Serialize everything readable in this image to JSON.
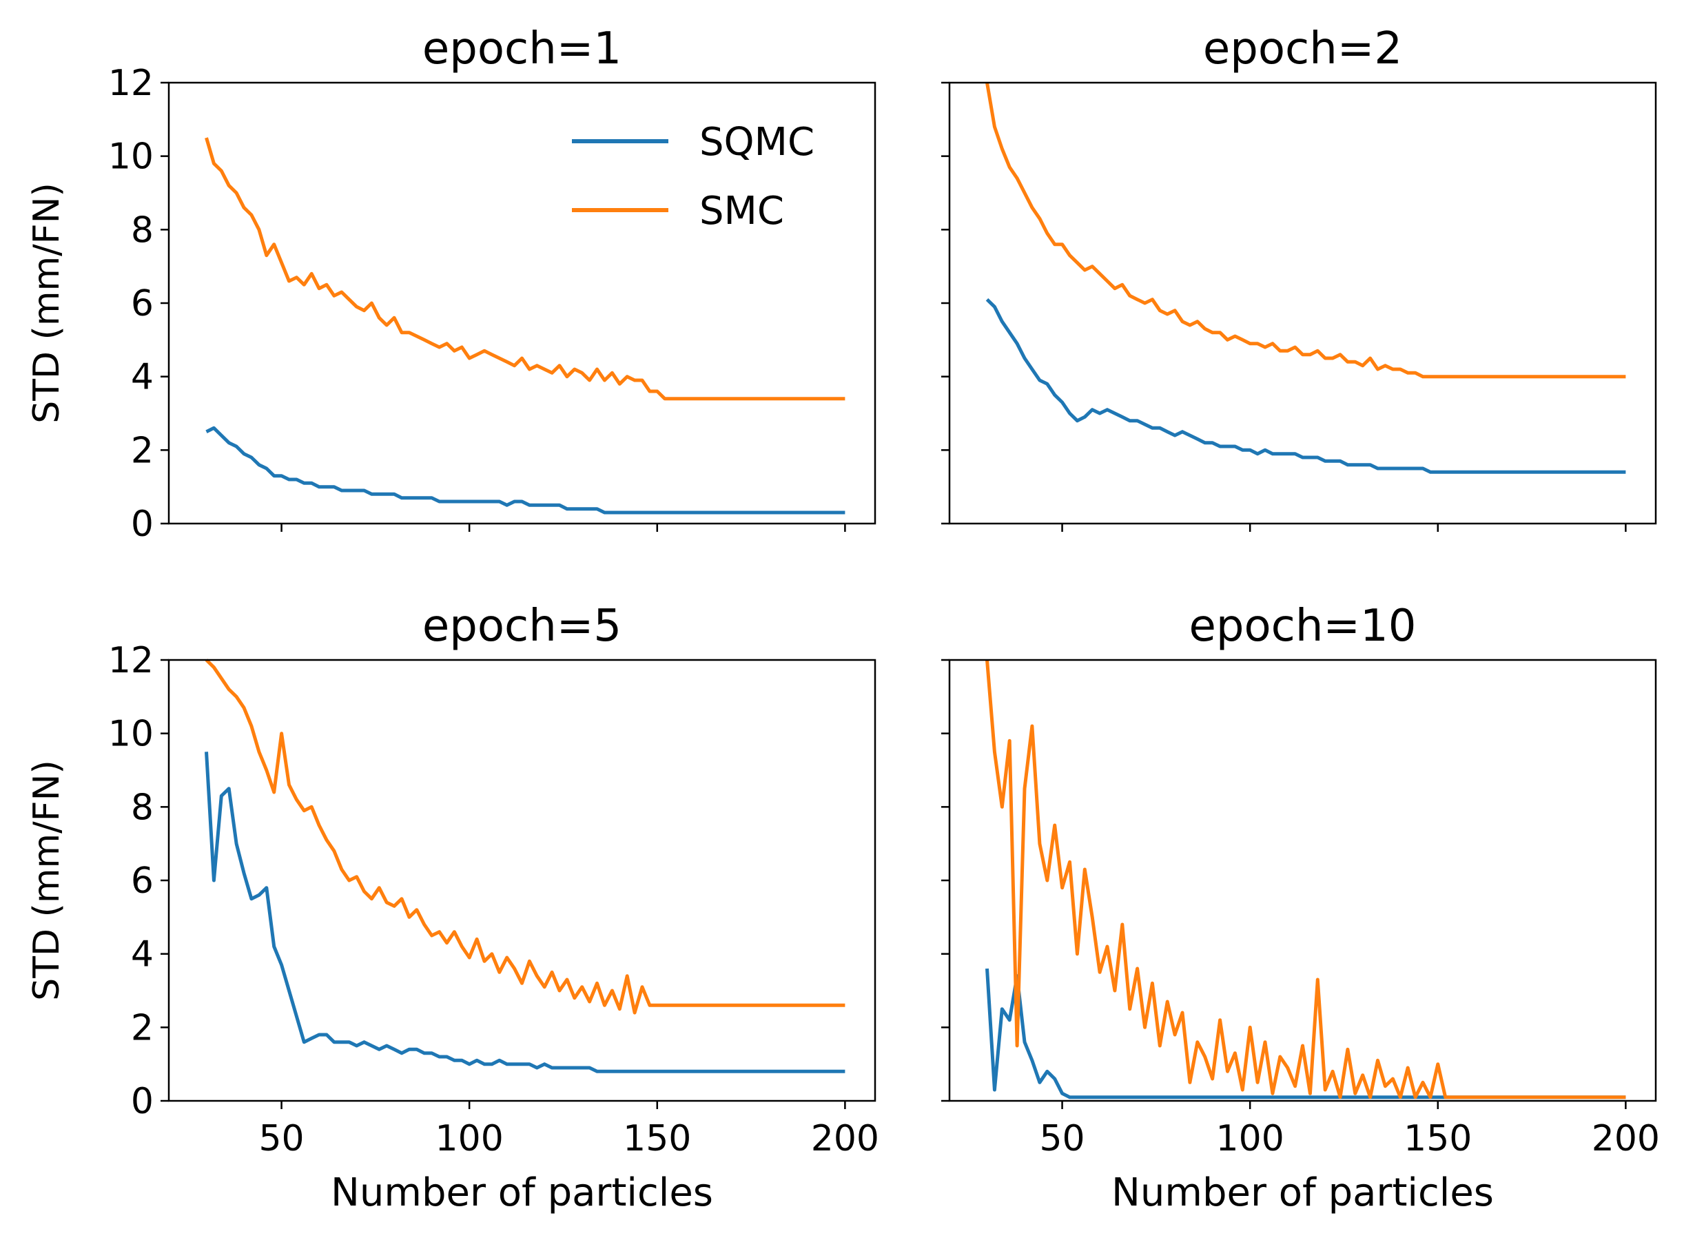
{
  "figure": {
    "ylabel": "STD (mm/FN)",
    "xlabel": "Number of particles"
  },
  "colors": {
    "SQMC": "#1f77b4",
    "SMC": "#ff7f0e"
  },
  "legend": {
    "placement": "upper-right of first panel",
    "entries": [
      "SQMC",
      "SMC"
    ]
  },
  "chart_data": [
    {
      "type": "line",
      "title": "epoch=1",
      "xlabel": "",
      "ylabel": "STD (mm/FN)",
      "xlim": [
        20,
        208
      ],
      "ylim": [
        0,
        12
      ],
      "xticks": [
        50,
        100,
        150,
        200
      ],
      "yticks": [
        0,
        2,
        4,
        6,
        8,
        10,
        12
      ],
      "show_xticklabels": false,
      "show_yticklabels": true,
      "x_start": 30,
      "x_step": 2,
      "series": [
        {
          "name": "SQMC",
          "values": [
            2.5,
            2.6,
            2.4,
            2.2,
            2.1,
            1.9,
            1.8,
            1.6,
            1.5,
            1.3,
            1.3,
            1.2,
            1.2,
            1.1,
            1.1,
            1.0,
            1.0,
            1.0,
            0.9,
            0.9,
            0.9,
            0.9,
            0.8,
            0.8,
            0.8,
            0.8,
            0.7,
            0.7,
            0.7,
            0.7,
            0.7,
            0.6,
            0.6,
            0.6,
            0.6,
            0.6,
            0.6,
            0.6,
            0.6,
            0.6,
            0.5,
            0.6,
            0.6,
            0.5,
            0.5,
            0.5,
            0.5,
            0.5,
            0.4,
            0.4,
            0.4,
            0.4,
            0.4,
            0.3,
            0.3,
            0.3,
            0.3,
            0.3,
            0.3,
            0.3,
            0.3,
            0.3,
            0.3,
            0.3,
            0.3,
            0.3,
            0.3,
            0.3,
            0.3,
            0.3,
            0.3,
            0.3,
            0.3,
            0.3,
            0.3,
            0.3,
            0.3,
            0.3,
            0.3,
            0.3,
            0.3,
            0.3,
            0.3,
            0.3,
            0.3,
            0.3
          ]
        },
        {
          "name": "SMC",
          "values": [
            10.5,
            9.8,
            9.6,
            9.2,
            9.0,
            8.6,
            8.4,
            8.0,
            7.3,
            7.6,
            7.1,
            6.6,
            6.7,
            6.5,
            6.8,
            6.4,
            6.5,
            6.2,
            6.3,
            6.1,
            5.9,
            5.8,
            6.0,
            5.6,
            5.4,
            5.6,
            5.2,
            5.2,
            5.1,
            5.0,
            4.9,
            4.8,
            4.9,
            4.7,
            4.8,
            4.5,
            4.6,
            4.7,
            4.6,
            4.5,
            4.4,
            4.3,
            4.5,
            4.2,
            4.3,
            4.2,
            4.1,
            4.3,
            4.0,
            4.2,
            4.1,
            3.9,
            4.2,
            3.9,
            4.1,
            3.8,
            4.0,
            3.9,
            3.9,
            3.6,
            3.6,
            3.4,
            3.4,
            3.4,
            3.4,
            3.4,
            3.4,
            3.4,
            3.4,
            3.4,
            3.4,
            3.4,
            3.4,
            3.4,
            3.4,
            3.4,
            3.4,
            3.4,
            3.4,
            3.4,
            3.4,
            3.4,
            3.4,
            3.4,
            3.4,
            3.4
          ]
        }
      ]
    },
    {
      "type": "line",
      "title": "epoch=2",
      "xlabel": "",
      "ylabel": "",
      "xlim": [
        20,
        208
      ],
      "ylim": [
        0,
        12
      ],
      "xticks": [
        50,
        100,
        150,
        200
      ],
      "yticks": [
        0,
        2,
        4,
        6,
        8,
        10,
        12
      ],
      "show_xticklabels": false,
      "show_yticklabels": false,
      "x_start": 30,
      "x_step": 2,
      "series": [
        {
          "name": "SQMC",
          "values": [
            6.1,
            5.9,
            5.5,
            5.2,
            4.9,
            4.5,
            4.2,
            3.9,
            3.8,
            3.5,
            3.3,
            3.0,
            2.8,
            2.9,
            3.1,
            3.0,
            3.1,
            3.0,
            2.9,
            2.8,
            2.8,
            2.7,
            2.6,
            2.6,
            2.5,
            2.4,
            2.5,
            2.4,
            2.3,
            2.2,
            2.2,
            2.1,
            2.1,
            2.1,
            2.0,
            2.0,
            1.9,
            2.0,
            1.9,
            1.9,
            1.9,
            1.9,
            1.8,
            1.8,
            1.8,
            1.7,
            1.7,
            1.7,
            1.6,
            1.6,
            1.6,
            1.6,
            1.5,
            1.5,
            1.5,
            1.5,
            1.5,
            1.5,
            1.5,
            1.4,
            1.4,
            1.4,
            1.4,
            1.4,
            1.4,
            1.4,
            1.4,
            1.4,
            1.4,
            1.4,
            1.4,
            1.4,
            1.4,
            1.4,
            1.4,
            1.4,
            1.4,
            1.4,
            1.4,
            1.4,
            1.4,
            1.4,
            1.4,
            1.4,
            1.4,
            1.4
          ]
        },
        {
          "name": "SMC",
          "values": [
            12.0,
            10.8,
            10.2,
            9.7,
            9.4,
            9.0,
            8.6,
            8.3,
            7.9,
            7.6,
            7.6,
            7.3,
            7.1,
            6.9,
            7.0,
            6.8,
            6.6,
            6.4,
            6.5,
            6.2,
            6.1,
            6.0,
            6.1,
            5.8,
            5.7,
            5.8,
            5.5,
            5.4,
            5.5,
            5.3,
            5.2,
            5.2,
            5.0,
            5.1,
            5.0,
            4.9,
            4.9,
            4.8,
            4.9,
            4.7,
            4.7,
            4.8,
            4.6,
            4.6,
            4.7,
            4.5,
            4.5,
            4.6,
            4.4,
            4.4,
            4.3,
            4.5,
            4.2,
            4.3,
            4.2,
            4.2,
            4.1,
            4.1,
            4.0,
            4.0,
            4.0,
            4.0,
            4.0,
            4.0,
            4.0,
            4.0,
            4.0,
            4.0,
            4.0,
            4.0,
            4.0,
            4.0,
            4.0,
            4.0,
            4.0,
            4.0,
            4.0,
            4.0,
            4.0,
            4.0,
            4.0,
            4.0,
            4.0,
            4.0,
            4.0,
            4.0
          ]
        }
      ]
    },
    {
      "type": "line",
      "title": "epoch=5",
      "xlabel": "Number of particles",
      "ylabel": "STD (mm/FN)",
      "xlim": [
        20,
        208
      ],
      "ylim": [
        0,
        12
      ],
      "xticks": [
        50,
        100,
        150,
        200
      ],
      "yticks": [
        0,
        2,
        4,
        6,
        8,
        10,
        12
      ],
      "show_xticklabels": true,
      "show_yticklabels": true,
      "x_start": 30,
      "x_step": 2,
      "series": [
        {
          "name": "SQMC",
          "values": [
            9.5,
            6.0,
            8.3,
            8.5,
            7.0,
            6.2,
            5.5,
            5.6,
            5.8,
            4.2,
            3.7,
            3.0,
            2.3,
            1.6,
            1.7,
            1.8,
            1.8,
            1.6,
            1.6,
            1.6,
            1.5,
            1.6,
            1.5,
            1.4,
            1.5,
            1.4,
            1.3,
            1.4,
            1.4,
            1.3,
            1.3,
            1.2,
            1.2,
            1.1,
            1.1,
            1.0,
            1.1,
            1.0,
            1.0,
            1.1,
            1.0,
            1.0,
            1.0,
            1.0,
            0.9,
            1.0,
            0.9,
            0.9,
            0.9,
            0.9,
            0.9,
            0.9,
            0.8,
            0.8,
            0.8,
            0.8,
            0.8,
            0.8,
            0.8,
            0.8,
            0.8,
            0.8,
            0.8,
            0.8,
            0.8,
            0.8,
            0.8,
            0.8,
            0.8,
            0.8,
            0.8,
            0.8,
            0.8,
            0.8,
            0.8,
            0.8,
            0.8,
            0.8,
            0.8,
            0.8,
            0.8,
            0.8,
            0.8,
            0.8,
            0.8,
            0.8
          ]
        },
        {
          "name": "SMC",
          "values": [
            12.0,
            11.8,
            11.5,
            11.2,
            11.0,
            10.7,
            10.2,
            9.5,
            9.0,
            8.4,
            10.0,
            8.6,
            8.2,
            7.9,
            8.0,
            7.5,
            7.1,
            6.8,
            6.3,
            6.0,
            6.1,
            5.7,
            5.5,
            5.8,
            5.4,
            5.3,
            5.5,
            5.0,
            5.2,
            4.8,
            4.5,
            4.6,
            4.3,
            4.6,
            4.2,
            3.9,
            4.4,
            3.8,
            4.0,
            3.5,
            3.9,
            3.6,
            3.2,
            3.8,
            3.4,
            3.1,
            3.5,
            3.0,
            3.3,
            2.8,
            3.1,
            2.7,
            3.2,
            2.6,
            3.0,
            2.5,
            3.4,
            2.4,
            3.1,
            2.6,
            2.6,
            2.6,
            2.6,
            2.6,
            2.6,
            2.6,
            2.6,
            2.6,
            2.6,
            2.6,
            2.6,
            2.6,
            2.6,
            2.6,
            2.6,
            2.6,
            2.6,
            2.6,
            2.6,
            2.6,
            2.6,
            2.6,
            2.6,
            2.6,
            2.6,
            2.6
          ]
        }
      ]
    },
    {
      "type": "line",
      "title": "epoch=10",
      "xlabel": "Number of particles",
      "ylabel": "",
      "xlim": [
        20,
        208
      ],
      "ylim": [
        0,
        12
      ],
      "xticks": [
        50,
        100,
        150,
        200
      ],
      "yticks": [
        0,
        2,
        4,
        6,
        8,
        10,
        12
      ],
      "show_xticklabels": true,
      "show_yticklabels": false,
      "x_start": 30,
      "x_step": 2,
      "series": [
        {
          "name": "SQMC",
          "values": [
            3.6,
            0.3,
            2.5,
            2.2,
            3.4,
            1.6,
            1.1,
            0.5,
            0.8,
            0.6,
            0.2,
            0.1,
            0.1,
            0.1,
            0.1,
            0.1,
            0.1,
            0.1,
            0.1,
            0.1,
            0.1,
            0.1,
            0.1,
            0.1,
            0.1,
            0.1,
            0.1,
            0.1,
            0.1,
            0.1,
            0.1,
            0.1,
            0.1,
            0.1,
            0.1,
            0.1,
            0.1,
            0.1,
            0.1,
            0.1,
            0.1,
            0.1,
            0.1,
            0.1,
            0.1,
            0.1,
            0.1,
            0.1,
            0.1,
            0.1,
            0.1,
            0.1,
            0.1,
            0.1,
            0.1,
            0.1,
            0.1,
            0.1,
            0.1,
            0.1,
            0.1,
            0.1,
            0.1,
            0.1,
            0.1,
            0.1,
            0.1,
            0.1,
            0.1,
            0.1,
            0.1,
            0.1,
            0.1,
            0.1,
            0.1,
            0.1,
            0.1,
            0.1,
            0.1,
            0.1,
            0.1,
            0.1,
            0.1,
            0.1,
            0.1,
            0.1
          ]
        },
        {
          "name": "SMC",
          "values": [
            12.0,
            9.5,
            8.0,
            9.8,
            1.5,
            8.5,
            10.2,
            7.0,
            6.0,
            7.5,
            5.8,
            6.5,
            4.0,
            6.3,
            5.0,
            3.5,
            4.2,
            3.0,
            4.8,
            2.5,
            3.6,
            2.0,
            3.2,
            1.5,
            2.7,
            1.8,
            2.4,
            0.5,
            1.6,
            1.2,
            0.6,
            2.2,
            0.8,
            1.3,
            0.3,
            2.0,
            0.5,
            1.6,
            0.2,
            1.2,
            0.9,
            0.4,
            1.5,
            0.2,
            3.3,
            0.3,
            0.8,
            0.1,
            1.4,
            0.2,
            0.7,
            0.1,
            1.1,
            0.4,
            0.6,
            0.1,
            0.9,
            0.1,
            0.5,
            0.1,
            1.0,
            0.1,
            0.1,
            0.1,
            0.1,
            0.1,
            0.1,
            0.1,
            0.1,
            0.1,
            0.1,
            0.1,
            0.1,
            0.1,
            0.1,
            0.1,
            0.1,
            0.1,
            0.1,
            0.1,
            0.1,
            0.1,
            0.1,
            0.1,
            0.1,
            0.1
          ]
        }
      ]
    }
  ]
}
